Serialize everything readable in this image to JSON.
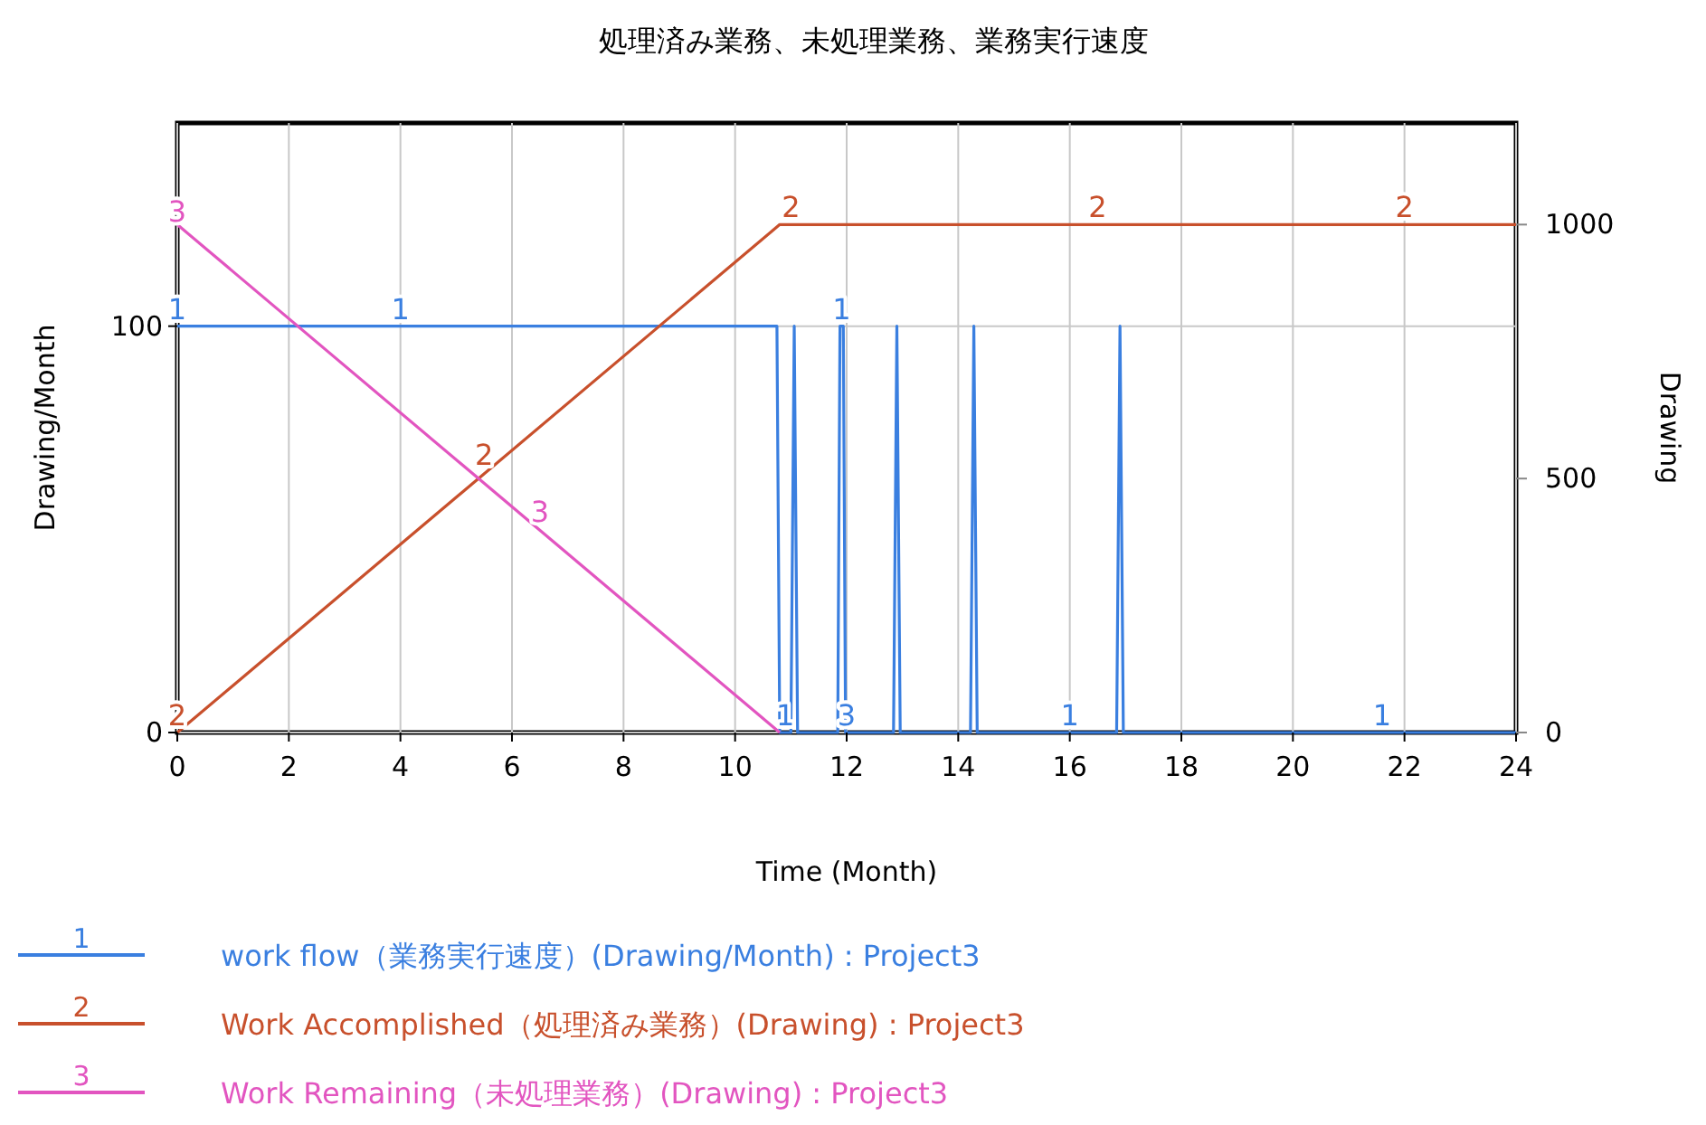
{
  "chart_data": {
    "type": "line",
    "title": "処理済み業務、未処理業務、業務実行速度",
    "xlabel": "Time (Month)",
    "ylabel": "Drawing/Month",
    "y2label": "Drawing",
    "xlim": [
      0,
      24
    ],
    "xticks": [
      0,
      2,
      4,
      6,
      8,
      10,
      12,
      14,
      16,
      18,
      20,
      22,
      24
    ],
    "ylim": [
      0,
      150
    ],
    "yticks": [
      0,
      100
    ],
    "y2lim": [
      0,
      1200
    ],
    "y2ticks": [
      0,
      500,
      1000
    ],
    "grid": true,
    "legend": "bottom",
    "line_style": "solid",
    "series": [
      {
        "name": "work flow（業務実行速度）(Drawing/Month) : Project3",
        "color": "#3a7fe0",
        "x": [
          0,
          10.75,
          10.8,
          11.0,
          11.06,
          11.12,
          11.84,
          11.88,
          11.94,
          11.98,
          12.84,
          12.9,
          12.96,
          14.22,
          14.28,
          14.34,
          16.84,
          16.9,
          16.96,
          24
        ],
        "values": [
          100,
          100,
          0,
          0,
          100,
          0,
          0,
          100,
          100,
          0,
          0,
          100,
          0,
          0,
          100,
          0,
          0,
          100,
          0,
          0
        ]
      },
      {
        "name": "Work Accomplished（処理済み業務）(Drawing) : Project3",
        "color": "#c8502c",
        "axis": "y2",
        "x": [
          0,
          10.8,
          24
        ],
        "values": [
          0,
          1000,
          1000
        ]
      },
      {
        "name": "Work Remaining（未処理業務）(Drawing) : Project3",
        "color": "#e255c0",
        "axis": "y2",
        "x": [
          0,
          10.8
        ],
        "values": [
          1000,
          0
        ]
      }
    ],
    "annotations": [
      {
        "text": "1",
        "x": 0,
        "y": 100
      },
      {
        "text": "1",
        "x": 4,
        "y": 100
      },
      {
        "text": "1",
        "x": 11.91,
        "y": 100
      },
      {
        "text": "1",
        "x": 10.9,
        "y": 0
      },
      {
        "text": "1",
        "x": 16,
        "y": 0
      },
      {
        "text": "1",
        "x": 21.6,
        "y": 0
      },
      {
        "text": "2",
        "x": 0,
        "y": 0
      },
      {
        "text": "2",
        "x": 5.5,
        "y": 64
      },
      {
        "text": "2",
        "x": 11,
        "y": 125
      },
      {
        "text": "2",
        "x": 16.5,
        "y": 125
      },
      {
        "text": "2",
        "x": 22,
        "y": 125
      },
      {
        "text": "3",
        "x": 0,
        "y": 124
      },
      {
        "text": "3",
        "x": 6.5,
        "y": 50
      },
      {
        "text": "3",
        "x": 12,
        "y": 0
      }
    ]
  }
}
